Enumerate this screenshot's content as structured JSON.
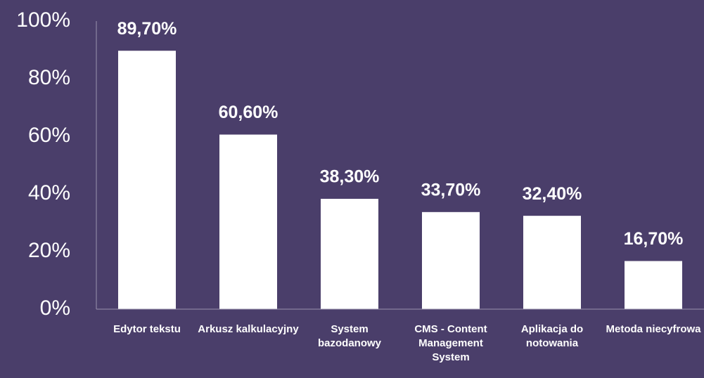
{
  "chart_data": {
    "type": "bar",
    "categories": [
      "Edytor tekstu",
      "Arkusz kalkulacyjny",
      "System bazodanowy",
      "CMS - Content Management System",
      "Aplikacja do notowania",
      "Metoda niecyfrowa"
    ],
    "values": [
      89.7,
      60.6,
      38.3,
      33.7,
      32.4,
      16.7
    ],
    "value_labels": [
      "89,70%",
      "60,60%",
      "38,30%",
      "33,70%",
      "32,40%",
      "16,70%"
    ],
    "color": "#ffffff",
    "ylim": [
      0,
      100
    ],
    "yticks": [
      {
        "value": 0,
        "label": "0%"
      },
      {
        "value": 20,
        "label": "20%"
      },
      {
        "value": 40,
        "label": "40%"
      },
      {
        "value": 60,
        "label": "60%"
      },
      {
        "value": 80,
        "label": "80%"
      },
      {
        "value": 100,
        "label": "100%"
      }
    ],
    "grid": false
  }
}
